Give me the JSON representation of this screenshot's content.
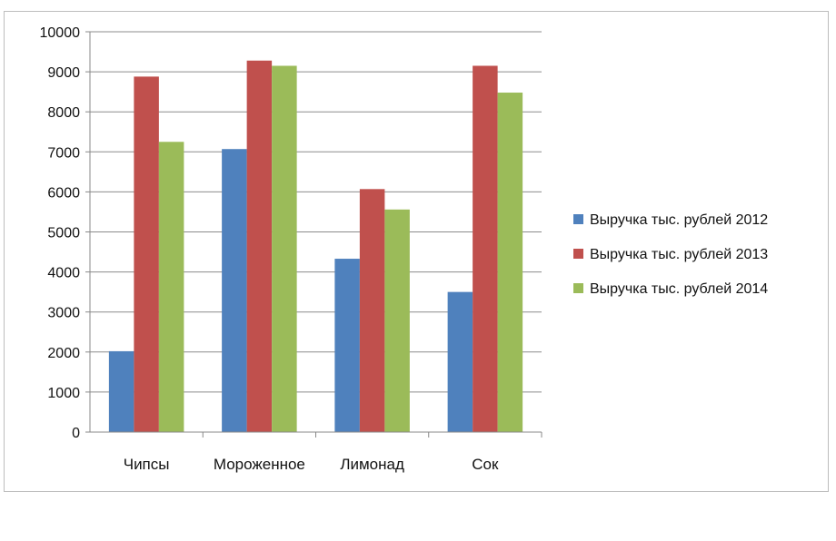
{
  "chart_data": {
    "type": "bar",
    "categories": [
      "Чипсы",
      "Мороженное",
      "Лимонад",
      "Сок"
    ],
    "series": [
      {
        "name": "Выручка тыс. рублей 2012",
        "color": "#4f81bd",
        "values": [
          2020,
          7070,
          4330,
          3500
        ]
      },
      {
        "name": "Выручка тыс. рублей 2013",
        "color": "#c0504d",
        "values": [
          8880,
          9280,
          6070,
          9150
        ]
      },
      {
        "name": "Выручка тыс. рублей 2014",
        "color": "#9bbb59",
        "values": [
          7250,
          9150,
          5560,
          8480
        ]
      }
    ],
    "ylim": [
      0,
      10000
    ],
    "yticks": [
      "0",
      "1000",
      "2000",
      "3000",
      "4000",
      "5000",
      "6000",
      "7000",
      "8000",
      "9000",
      "10000"
    ],
    "grid": true,
    "legend": "right"
  }
}
